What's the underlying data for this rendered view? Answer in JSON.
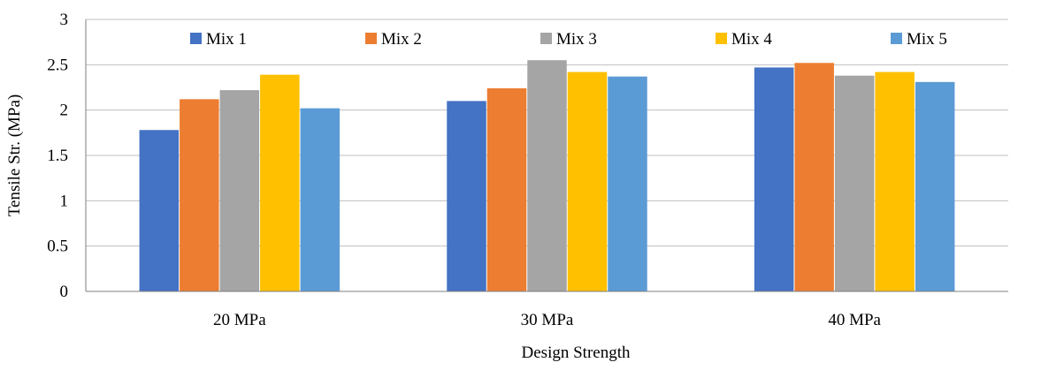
{
  "chart_data": {
    "type": "bar",
    "title": "",
    "xlabel": "Design Strength",
    "ylabel": "Tensile  Str. (MPa)",
    "categories": [
      "20 MPa",
      "30 MPa",
      "40 MPa"
    ],
    "ylim": [
      0,
      3
    ],
    "yticks": [
      "0",
      "0.5",
      "1",
      "1.5",
      "2",
      "2.5",
      "3"
    ],
    "grid": true,
    "legend_position": "top",
    "series": [
      {
        "name": "Mix 1",
        "color": "#4472C4",
        "values": [
          1.78,
          2.1,
          2.47
        ]
      },
      {
        "name": "Mix 2",
        "color": "#ED7D31",
        "values": [
          2.12,
          2.24,
          2.52
        ]
      },
      {
        "name": "Mix 3",
        "color": "#A5A5A5",
        "values": [
          2.22,
          2.55,
          2.38
        ]
      },
      {
        "name": "Mix 4",
        "color": "#FFC000",
        "values": [
          2.39,
          2.42,
          2.42
        ]
      },
      {
        "name": "Mix 5",
        "color": "#5B9BD5",
        "values": [
          2.02,
          2.37,
          2.31
        ]
      }
    ]
  }
}
